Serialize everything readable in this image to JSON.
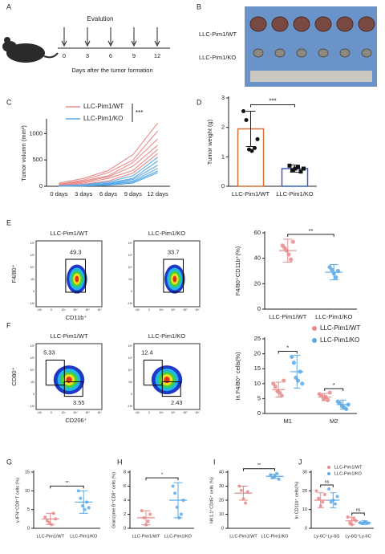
{
  "panel_a": {
    "label": "A",
    "title": "Evalution",
    "days": [
      "0",
      "3",
      "6",
      "9",
      "12"
    ],
    "xlabel": "Days after the tumor formation"
  },
  "panel_b": {
    "label": "B",
    "rows": [
      "LLC-Pim1/WT",
      "LLC-Pim1/KO"
    ]
  },
  "flow_e": {
    "label": "E",
    "samples": [
      "LLC-Pim1/WT",
      "LLC-Pim1/KO"
    ],
    "gates": [
      49.3,
      33.7
    ],
    "ylabel": "F4/80⁺",
    "xlabel": "CD11b⁺",
    "ticks": [
      "-10³",
      "0",
      "10³",
      "10⁴",
      "10⁵",
      "10⁶"
    ]
  },
  "flow_f": {
    "label": "F",
    "samples": [
      "LLC-Pim1/WT",
      "LLC-Pim1/KO"
    ],
    "gates": [
      [
        5.33,
        3.55
      ],
      [
        12.4,
        2.43
      ]
    ],
    "ylabel": "CD80⁺",
    "xlabel": "CD206⁺",
    "ticks": [
      "-10³",
      "0",
      "10³",
      "10⁴",
      "10⁵",
      "10⁶"
    ]
  },
  "chart_data": [
    {
      "type": "line",
      "label": "C",
      "ylabel": "Tumor volumn (mm³)",
      "categories": [
        "0 days",
        "3 days",
        "6 days",
        "9 days",
        "12 days"
      ],
      "ylim": [
        0,
        1250
      ],
      "yticks": [
        0,
        500,
        1000
      ],
      "annotation": "***",
      "groups": [
        {
          "name": "LLC-Pim1/WT",
          "color": "#e88a8a",
          "lines": [
            [
              60,
              150,
              300,
              600,
              1200
            ],
            [
              40,
              120,
              260,
              500,
              1050
            ],
            [
              30,
              100,
              200,
              450,
              900
            ],
            [
              20,
              80,
              180,
              380,
              780
            ],
            [
              10,
              60,
              150,
              300,
              700
            ],
            [
              5,
              40,
              100,
              250,
              620
            ]
          ]
        },
        {
          "name": "LLC-Pim1/KO",
          "color": "#5aa9e6",
          "lines": [
            [
              10,
              30,
              80,
              200,
              550
            ],
            [
              5,
              20,
              60,
              150,
              480
            ],
            [
              5,
              15,
              50,
              130,
              400
            ],
            [
              0,
              10,
              40,
              100,
              340
            ],
            [
              0,
              10,
              30,
              80,
              290
            ],
            [
              0,
              5,
              20,
              60,
              260
            ]
          ]
        }
      ]
    },
    {
      "type": "bar",
      "label": "D",
      "ylabel": "Tumor weight (g)",
      "categories": [
        "LLC-Pim1/WT",
        "LLC-Pim1/KO"
      ],
      "values": [
        1.95,
        0.6
      ],
      "errors": [
        0.6,
        0.12
      ],
      "colors": [
        "#d4703a",
        "#3b5fc0"
      ],
      "points": [
        [
          2.55,
          2.25,
          1.25,
          1.2,
          1.3,
          1.6
        ],
        [
          0.7,
          0.55,
          0.6,
          0.65,
          0.5,
          0.6
        ]
      ],
      "ylim": [
        0,
        3
      ],
      "yticks": [
        0,
        1,
        2,
        3
      ],
      "annotations": [
        "***"
      ]
    },
    {
      "type": "dotplot",
      "ylabel": "F4/80⁺CD11b⁺(%)",
      "categories": [
        "LLC-Pim1/WT",
        "LLC-Pim1/KO"
      ],
      "values": [
        46,
        29
      ],
      "errors": [
        9,
        6
      ],
      "colors": [
        "#e88a8a",
        "#5aa9e6"
      ],
      "points": [
        [
          50,
          48,
          46,
          43,
          39,
          53
        ],
        [
          33,
          31,
          28,
          25,
          30
        ]
      ],
      "ylim": [
        0,
        60
      ],
      "yticks": [
        0,
        20,
        40,
        60
      ],
      "annotations": [
        "**"
      ]
    },
    {
      "type": "dotplot",
      "ylabel": "In F4/80⁺ cells(%)",
      "categories": [
        "M1",
        "M2"
      ],
      "ylim": [
        0,
        25
      ],
      "yticks": [
        0,
        5,
        10,
        15,
        20,
        25
      ],
      "annotations": [
        "*",
        "*"
      ],
      "series": [
        {
          "name": "LLC-Pim1/WT",
          "color": "#e88a8a",
          "values": [
            8,
            5.5
          ],
          "errors": [
            2.5,
            1.2
          ],
          "points": [
            [
              10,
              9,
              7.5,
              7,
              6,
              11
            ],
            [
              6.5,
              6,
              5,
              5.5,
              4.5,
              7
            ]
          ]
        },
        {
          "name": "LLC-Pim1/KO",
          "color": "#5aa9e6",
          "values": [
            14,
            3
          ],
          "errors": [
            5.5,
            1.5
          ],
          "points": [
            [
              19,
              17,
              12,
              11,
              14,
              10
            ],
            [
              4,
              3.5,
              2.5,
              2,
              1.5,
              3
            ]
          ]
        }
      ]
    },
    {
      "type": "dotplot",
      "label": "G",
      "ylabel": "γ-IFN⁺CD8⁺T cells (%)",
      "categories": [
        "LLC-Pim1/WT",
        "LLC-Pim1/KO"
      ],
      "values": [
        2.5,
        7
      ],
      "errors": [
        1.5,
        3
      ],
      "colors": [
        "#e88a8a",
        "#5aa9e6"
      ],
      "points": [
        [
          3,
          2,
          1.5,
          1,
          4,
          2.5
        ],
        [
          10,
          8,
          6,
          5,
          7,
          5.5
        ]
      ],
      "ylim": [
        0,
        15
      ],
      "yticks": [
        0,
        5,
        10,
        15
      ],
      "annotations": [
        "**"
      ]
    },
    {
      "type": "dotplot",
      "label": "H",
      "ylabel": "Granzyme B⁺CD8⁺ cells (%)",
      "categories": [
        "LLC-Pim1/WT",
        "LLC-Pim1/KO"
      ],
      "values": [
        1.5,
        4
      ],
      "errors": [
        1,
        2.5
      ],
      "colors": [
        "#e88a8a",
        "#5aa9e6"
      ],
      "points": [
        [
          2.5,
          1.5,
          0.5,
          1,
          2
        ],
        [
          6,
          5,
          3,
          1.5,
          2,
          4
        ]
      ],
      "ylim": [
        0,
        8
      ],
      "yticks": [
        0,
        2,
        4,
        6,
        8
      ],
      "annotations": [
        "*"
      ]
    },
    {
      "type": "dotplot",
      "label": "I",
      "ylabel": "NK1.1⁺CD45⁺ cells (%)",
      "categories": [
        "LLC-Pim1/WT",
        "LLC-Pim1/KO"
      ],
      "values": [
        25,
        37
      ],
      "errors": [
        5,
        1.5
      ],
      "colors": [
        "#e88a8a",
        "#5aa9e6"
      ],
      "points": [
        [
          30,
          27,
          21,
          18,
          26
        ],
        [
          38,
          36,
          37,
          39,
          35
        ]
      ],
      "ylim": [
        0,
        40
      ],
      "yticks": [
        0,
        10,
        20,
        30,
        40
      ],
      "annotations": [
        "**"
      ]
    },
    {
      "type": "dotplot",
      "label": "J",
      "ylabel": "In CD11b⁺ cells(%)",
      "categories": [
        "Ly-6C⁺Ly-6G",
        "Ly-6G⁺Ly-6C"
      ],
      "ylim": [
        0,
        30
      ],
      "yticks": [
        0,
        10,
        20,
        30
      ],
      "annotations": [
        "ns",
        "ns"
      ],
      "series": [
        {
          "name": "LLC-Pim1/WT",
          "color": "#e88a8a",
          "values": [
            15,
            4
          ],
          "errors": [
            4,
            2
          ],
          "points": [
            [
              20,
              16,
              12,
              14,
              18
            ],
            [
              6,
              3,
              2,
              5,
              4
            ]
          ]
        },
        {
          "name": "LLC-Pim1/KO",
          "color": "#5aa9e6",
          "values": [
            15,
            3
          ],
          "errors": [
            4,
            1
          ],
          "points": [
            [
              21,
              14,
              15,
              13,
              17
            ],
            [
              3,
              2.5,
              3.5,
              3,
              2.8
            ]
          ]
        }
      ]
    }
  ]
}
